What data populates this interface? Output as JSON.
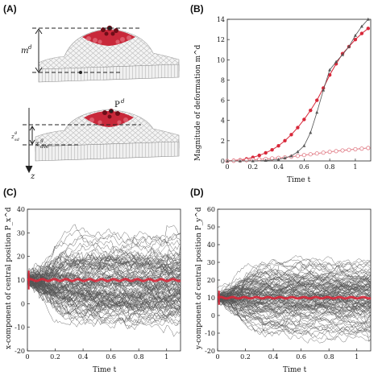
{
  "panels": {
    "a": "(A)",
    "b": "(B)",
    "c": "(C)",
    "d": "(D)"
  },
  "diagram": {
    "label_m": "m",
    "label_m_sup": "d",
    "label_p": "P",
    "label_p_sup": "d",
    "label_z": "z",
    "label_zave": "z",
    "label_zave_sub": "ave",
    "label_zave_sup": "g",
    "label_zsd": "z",
    "label_zsd_sub": "sd",
    "label_zsd_sup": "g",
    "colors": {
      "cell_red": "#c8283a",
      "cell_dark": "#6e0d18",
      "cell_white": "#f2f2f2"
    }
  },
  "chart_data": [
    {
      "type": "line",
      "panel": "B",
      "ylabel": "Magnitude of deformation m^d",
      "xlabel": "Time t",
      "xlim": [
        0,
        1.12
      ],
      "ylim": [
        0,
        14
      ],
      "xticks": [
        "0",
        "0.2",
        "0.4",
        "0.6",
        "0.8",
        "1"
      ],
      "yticks": [
        "0",
        "2",
        "4",
        "6",
        "8",
        "10",
        "12",
        "14"
      ],
      "colors": {
        "red": "#d8283a",
        "pink": "#e07a84",
        "dark": "#555555"
      },
      "series": [
        {
          "style": "red-filled",
          "x": [
            0,
            0.05,
            0.1,
            0.15,
            0.2,
            0.25,
            0.3,
            0.35,
            0.4,
            0.45,
            0.5,
            0.55,
            0.6,
            0.65,
            0.7,
            0.75,
            0.8,
            0.85,
            0.9,
            0.95,
            1.0,
            1.05,
            1.1
          ],
          "y": [
            0,
            0.05,
            0.1,
            0.2,
            0.35,
            0.55,
            0.8,
            1.1,
            1.5,
            2.0,
            2.6,
            3.3,
            4.1,
            5.0,
            6.0,
            7.2,
            8.5,
            9.6,
            10.6,
            11.3,
            12.0,
            12.6,
            13.1
          ]
        },
        {
          "style": "pink-open",
          "x": [
            0,
            0.05,
            0.1,
            0.15,
            0.2,
            0.25,
            0.3,
            0.35,
            0.4,
            0.45,
            0.5,
            0.55,
            0.6,
            0.65,
            0.7,
            0.75,
            0.8,
            0.85,
            0.9,
            0.95,
            1.0,
            1.05,
            1.1
          ],
          "y": [
            0,
            0.02,
            0.05,
            0.08,
            0.12,
            0.16,
            0.2,
            0.25,
            0.3,
            0.35,
            0.42,
            0.5,
            0.58,
            0.66,
            0.74,
            0.82,
            0.9,
            0.97,
            1.04,
            1.1,
            1.16,
            1.22,
            1.28
          ]
        },
        {
          "style": "dark-triangle",
          "x": [
            0,
            0.1,
            0.2,
            0.3,
            0.4,
            0.45,
            0.5,
            0.55,
            0.6,
            0.65,
            0.7,
            0.75,
            0.8,
            0.85,
            0.9,
            0.95,
            1.0,
            1.05,
            1.1
          ],
          "y": [
            0,
            0,
            0,
            0.05,
            0.15,
            0.3,
            0.5,
            0.9,
            1.5,
            2.8,
            4.8,
            7.0,
            9.0,
            9.8,
            10.5,
            11.3,
            12.4,
            13.3,
            14.0
          ]
        }
      ]
    },
    {
      "type": "line",
      "panel": "C",
      "ylabel": "x-component of central position P_x^d",
      "xlabel": "Time t",
      "xlim": [
        0,
        1.1
      ],
      "ylim": [
        -20,
        40
      ],
      "xticks": [
        "0",
        "0.2",
        "0.4",
        "0.6",
        "0.8",
        "1"
      ],
      "yticks": [
        "-20",
        "-10",
        "0",
        "10",
        "20",
        "30",
        "40"
      ],
      "center": 10,
      "trajectories": 110,
      "colors": {
        "traj": "#555555",
        "mean": "#d8283a"
      }
    },
    {
      "type": "line",
      "panel": "D",
      "ylabel": "y-component of central position P_y^d",
      "xlabel": "Time t",
      "xlim": [
        0,
        1.1
      ],
      "ylim": [
        -20,
        60
      ],
      "xticks": [
        "0",
        "0.2",
        "0.4",
        "0.6",
        "0.8",
        "1"
      ],
      "yticks": [
        "-20",
        "-10",
        "0",
        "10",
        "20",
        "30",
        "40",
        "50",
        "60"
      ],
      "center": 10,
      "trajectories": 110,
      "colors": {
        "traj": "#555555",
        "mean": "#d8283a"
      }
    }
  ]
}
